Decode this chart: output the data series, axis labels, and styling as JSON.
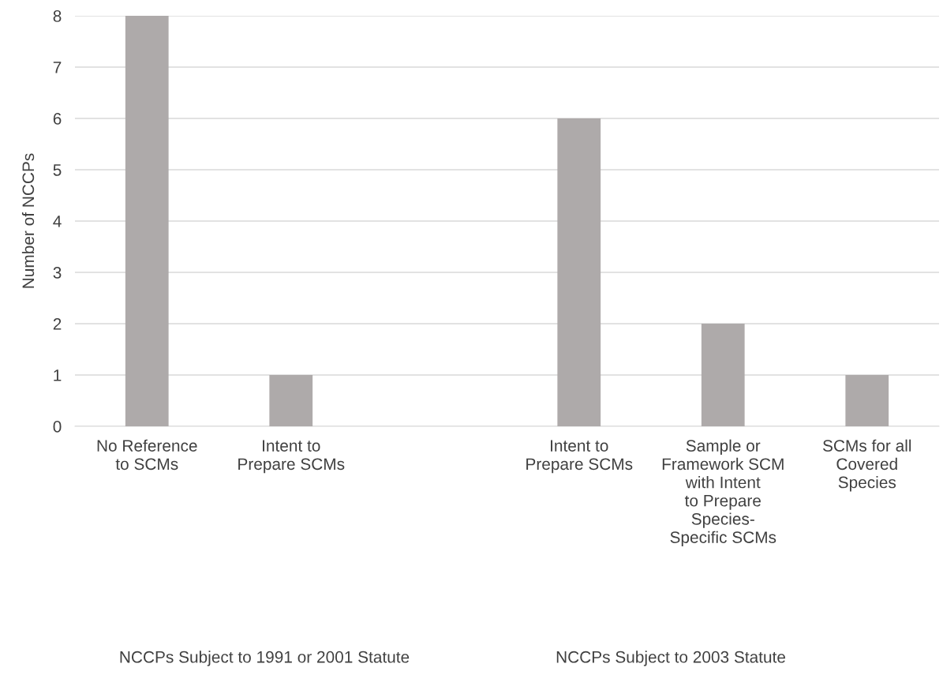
{
  "chart_data": {
    "type": "bar",
    "ylabel": "Number of NCCPs",
    "categories": [
      "No Reference to SCMs",
      "Intent to Prepare SCMs",
      null,
      "Intent to Prepare SCMs",
      "Sample or Framework SCM with Intent to Prepare Species-Specific SCMs",
      "SCMs for all Covered Species"
    ],
    "values": [
      8,
      1,
      null,
      6,
      2,
      1
    ],
    "color": "#aeaaaa",
    "ylim": [
      0,
      8
    ],
    "yticks": [
      0,
      1,
      2,
      3,
      4,
      5,
      6,
      7,
      8
    ],
    "grid": "y",
    "annotations": [
      "NCCPs Subject to 1991 or 2001 Statute",
      "NCCPs Subject to 2003 Statute"
    ]
  }
}
